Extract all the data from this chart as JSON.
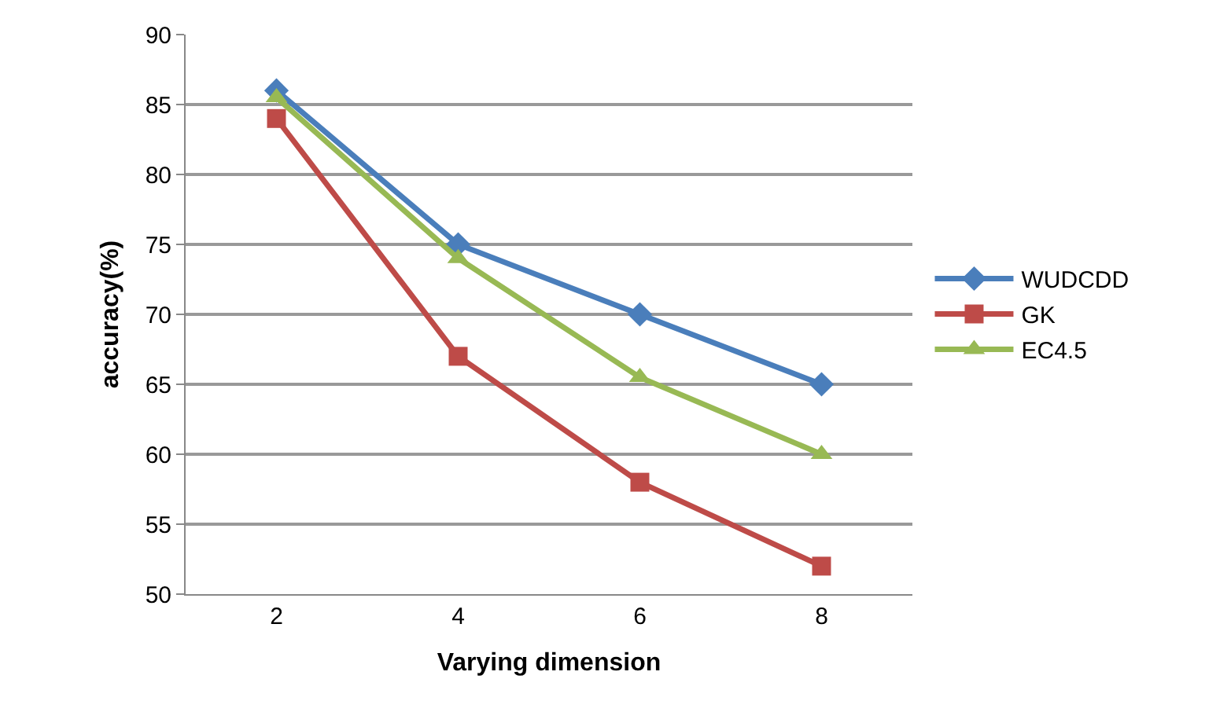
{
  "chart_data": {
    "type": "line",
    "xlabel": "Varying dimension",
    "ylabel": "accuracy(%)",
    "categories": [
      "2",
      "4",
      "6",
      "8"
    ],
    "series": [
      {
        "name": "WUDCDD",
        "color": "#4a7ebb",
        "marker": "diamond",
        "values": [
          86,
          75,
          70,
          65
        ]
      },
      {
        "name": "GK",
        "color": "#be4b48",
        "marker": "square",
        "values": [
          84,
          67,
          58,
          52
        ]
      },
      {
        "name": "EC4.5",
        "color": "#98b954",
        "marker": "triangle",
        "values": [
          85.5,
          74,
          65.5,
          60
        ]
      }
    ],
    "ylim": [
      50,
      90
    ],
    "yticks": [
      50,
      55,
      60,
      65,
      70,
      75,
      80,
      85,
      90
    ],
    "grid": "y",
    "legend": "right"
  }
}
